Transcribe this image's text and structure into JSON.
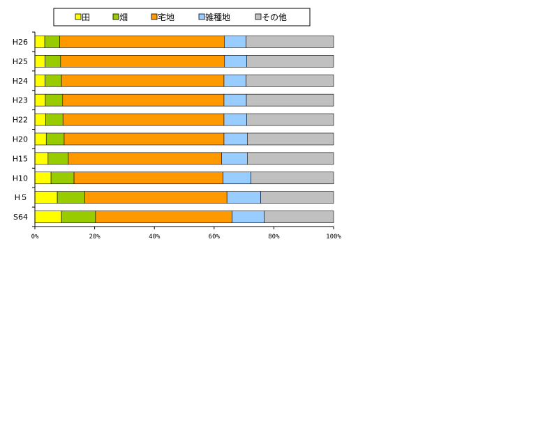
{
  "chart_data": {
    "type": "bar",
    "orientation": "horizontal",
    "stacked": "percent",
    "categories": [
      "H26",
      "H25",
      "H24",
      "H23",
      "H22",
      "H20",
      "H15",
      "H10",
      "H５",
      "S64"
    ],
    "series": [
      {
        "name": "田",
        "color": "#FFFF00",
        "values": [
          3.3,
          3.4,
          3.4,
          3.5,
          3.6,
          3.8,
          4.4,
          5.4,
          7.5,
          8.9
        ]
      },
      {
        "name": "畑",
        "color": "#99CC00",
        "values": [
          5.0,
          5.2,
          5.5,
          5.8,
          5.8,
          6.0,
          6.8,
          7.7,
          9.2,
          11.4
        ]
      },
      {
        "name": "宅地",
        "color": "#FF9900",
        "values": [
          55.1,
          54.9,
          54.4,
          54.0,
          53.9,
          53.5,
          51.3,
          49.9,
          47.6,
          45.7
        ]
      },
      {
        "name": "雑種地",
        "color": "#99CCFF",
        "values": [
          7.3,
          7.4,
          7.4,
          7.5,
          7.6,
          7.8,
          8.6,
          9.3,
          11.3,
          10.8
        ]
      },
      {
        "name": "その他",
        "color": "#C0C0C0",
        "values": [
          29.3,
          29.1,
          29.3,
          29.2,
          29.1,
          28.9,
          28.9,
          27.7,
          24.4,
          23.2
        ]
      }
    ],
    "x_ticks": [
      "0%",
      "20%",
      "40%",
      "60%",
      "80%",
      "100%"
    ],
    "xlim": [
      0,
      100
    ],
    "grid": false,
    "legend_position": "top"
  }
}
